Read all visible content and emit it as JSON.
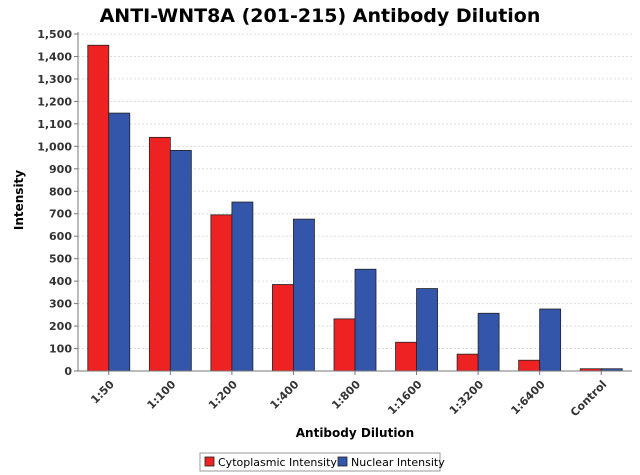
{
  "chart_data": {
    "type": "bar",
    "title": "ANTI-WNT8A (201-215) Antibody Dilution",
    "xlabel": "Antibody Dilution",
    "ylabel": "Intensity",
    "categories": [
      "1:50",
      "1:100",
      "1:200",
      "1:400",
      "1:800",
      "1:1600",
      "1:3200",
      "1:6400",
      "Control"
    ],
    "series": [
      {
        "name": "Cytoplasmic Intensity",
        "color": "#ee2222",
        "values": [
          1450,
          1040,
          695,
          385,
          232,
          128,
          75,
          48,
          10
        ]
      },
      {
        "name": "Nuclear Intensity",
        "color": "#3355aa",
        "values": [
          1148,
          982,
          752,
          676,
          453,
          367,
          257,
          276,
          10
        ]
      }
    ],
    "ylim": [
      0,
      1500
    ],
    "yticks": [
      0,
      100,
      200,
      300,
      400,
      500,
      600,
      700,
      800,
      900,
      1000,
      1100,
      1200,
      1300,
      1400,
      1500
    ],
    "ytick_labels": [
      "0",
      "100",
      "200",
      "300",
      "400",
      "500",
      "600",
      "700",
      "800",
      "900",
      "1,000",
      "1,100",
      "1,200",
      "1,300",
      "1,400",
      "1,500"
    ],
    "grid": true,
    "legend": "bottom"
  }
}
